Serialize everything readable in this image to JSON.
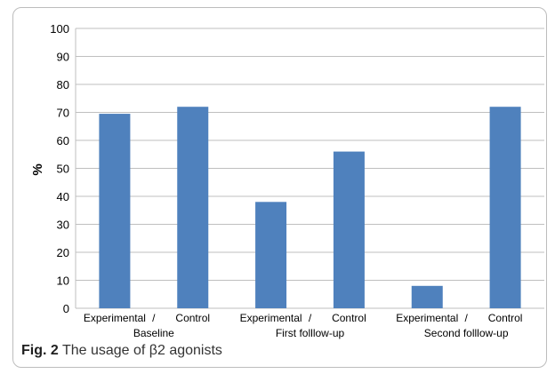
{
  "chart_data": {
    "type": "bar",
    "ylabel": "%",
    "ylim": [
      0,
      100
    ],
    "yticks": [
      0,
      10,
      20,
      30,
      40,
      50,
      60,
      70,
      80,
      90,
      100
    ],
    "grid": true,
    "bar_color": "#4f81bd",
    "grid_color": "#bfbfbf",
    "bars": [
      {
        "label": "Experimental",
        "value": 69.5
      },
      {
        "label": "Control",
        "value": 72
      },
      {
        "label": "Experimental",
        "value": 38
      },
      {
        "label": "Control",
        "value": 56
      },
      {
        "label": "Experimental",
        "value": 8
      },
      {
        "label": "Control",
        "value": 72
      }
    ],
    "groups": [
      {
        "label": "Baseline",
        "separator": "/"
      },
      {
        "label": "First folllow-up",
        "separator": "/"
      },
      {
        "label": "Second folllow-up",
        "separator": "/"
      }
    ]
  },
  "caption": {
    "figure_label": "Fig. 2",
    "text": "The usage of β2 agonists"
  }
}
